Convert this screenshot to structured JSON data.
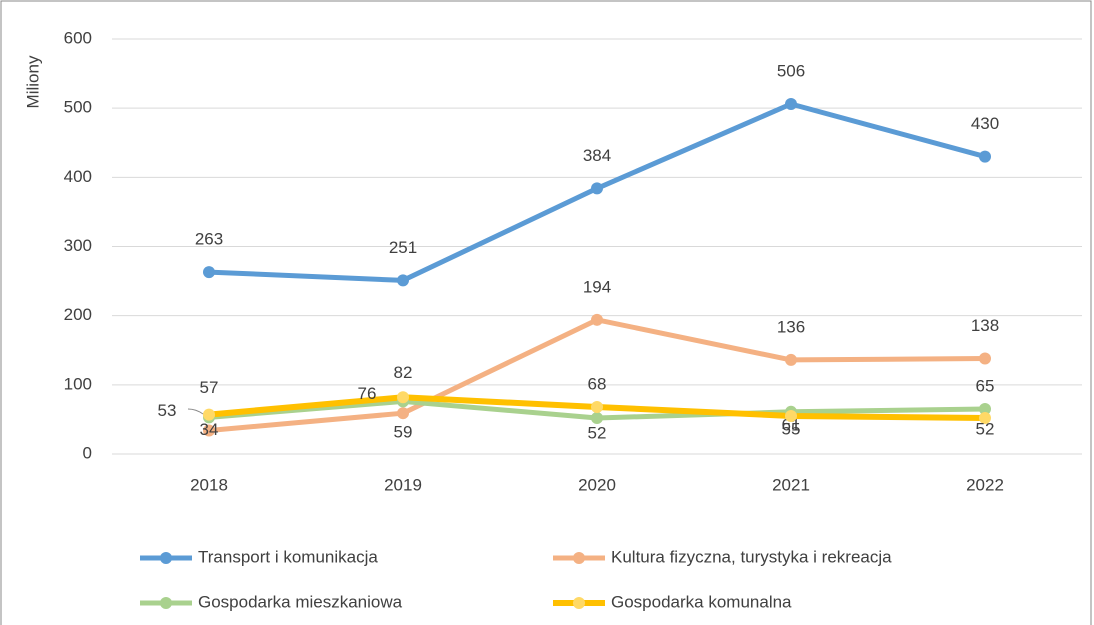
{
  "chart_data": {
    "type": "line",
    "y_label": "Miliony",
    "x": [
      "2018",
      "2019",
      "2020",
      "2021",
      "2022"
    ],
    "series": [
      {
        "name": "Transport i komunikacja",
        "color": "#5b9bd5",
        "values": [
          263,
          251,
          384,
          506,
          430
        ]
      },
      {
        "name": "Kultura fizyczna, turystyka i rekreacja",
        "color": "#f4b183",
        "values": [
          34,
          59,
          194,
          136,
          138
        ]
      },
      {
        "name": "Gospodarka mieszkaniowa",
        "color": "#a9d18e",
        "values": [
          53,
          76,
          52,
          61,
          65
        ]
      },
      {
        "name": "Gospodarka komunalna",
        "color": "#ffc000",
        "values": [
          57,
          82,
          68,
          55,
          52
        ]
      }
    ],
    "ylim": [
      0,
      600
    ],
    "yticks": [
      0,
      100,
      200,
      300,
      400,
      500,
      600
    ],
    "grid": true,
    "legend": "bottom"
  }
}
